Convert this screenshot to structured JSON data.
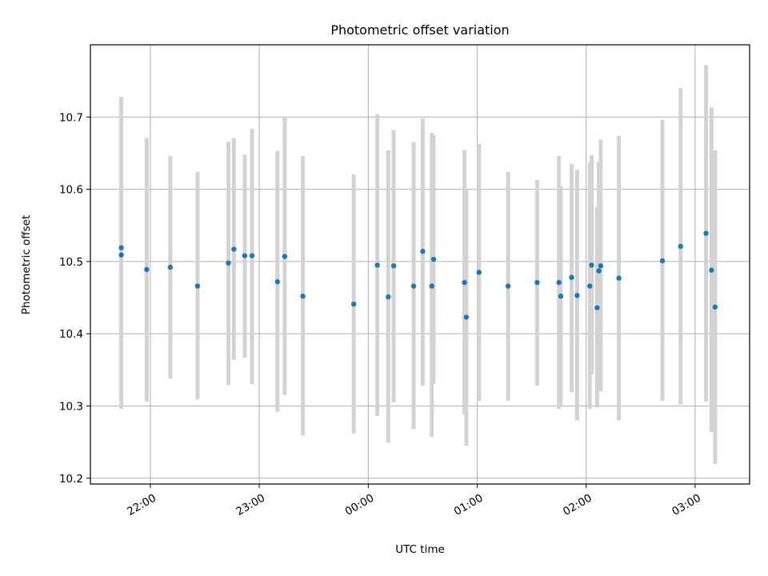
{
  "chart_data": {
    "type": "scatter",
    "title": "Photometric offset variation",
    "xlabel": "UTC time",
    "ylabel": "Photometric offset",
    "x_is_time": true,
    "xlim": [
      "21:27",
      "03:30"
    ],
    "ylim": [
      10.192,
      10.8
    ],
    "x_ticks": [
      "22:00",
      "23:00",
      "00:00",
      "01:00",
      "02:00",
      "03:00"
    ],
    "y_ticks": [
      "10.2",
      "10.3",
      "10.4",
      "10.5",
      "10.6",
      "10.7"
    ],
    "grid": true,
    "point_color": "#1f77b4",
    "errorbar_color": "#d3d3d3",
    "series": [
      {
        "points": [
          {
            "x": "21:44",
            "y": 10.509,
            "lo": 10.296,
            "hi": 10.724
          },
          {
            "x": "21:44",
            "y": 10.519,
            "lo": 10.311,
            "hi": 10.728
          },
          {
            "x": "21:58",
            "y": 10.489,
            "lo": 10.306,
            "hi": 10.671
          },
          {
            "x": "22:11",
            "y": 10.492,
            "lo": 10.338,
            "hi": 10.646
          },
          {
            "x": "22:26",
            "y": 10.466,
            "lo": 10.309,
            "hi": 10.624
          },
          {
            "x": "22:43",
            "y": 10.498,
            "lo": 10.329,
            "hi": 10.666
          },
          {
            "x": "22:46",
            "y": 10.517,
            "lo": 10.364,
            "hi": 10.671
          },
          {
            "x": "22:52",
            "y": 10.508,
            "lo": 10.367,
            "hi": 10.648
          },
          {
            "x": "22:56",
            "y": 10.508,
            "lo": 10.33,
            "hi": 10.684
          },
          {
            "x": "23:10",
            "y": 10.472,
            "lo": 10.292,
            "hi": 10.653
          },
          {
            "x": "23:14",
            "y": 10.507,
            "lo": 10.315,
            "hi": 10.7
          },
          {
            "x": "23:24",
            "y": 10.452,
            "lo": 10.259,
            "hi": 10.646
          },
          {
            "x": "23:52",
            "y": 10.441,
            "lo": 10.262,
            "hi": 10.621
          },
          {
            "x": "00:05",
            "y": 10.495,
            "lo": 10.286,
            "hi": 10.704
          },
          {
            "x": "00:11",
            "y": 10.451,
            "lo": 10.249,
            "hi": 10.654
          },
          {
            "x": "00:14",
            "y": 10.494,
            "lo": 10.305,
            "hi": 10.682
          },
          {
            "x": "00:25",
            "y": 10.466,
            "lo": 10.268,
            "hi": 10.665
          },
          {
            "x": "00:30",
            "y": 10.514,
            "lo": 10.328,
            "hi": 10.698
          },
          {
            "x": "00:35",
            "y": 10.466,
            "lo": 10.257,
            "hi": 10.678
          },
          {
            "x": "00:36",
            "y": 10.503,
            "lo": 10.331,
            "hi": 10.675
          },
          {
            "x": "00:53",
            "y": 10.471,
            "lo": 10.288,
            "hi": 10.654
          },
          {
            "x": "00:54",
            "y": 10.423,
            "lo": 10.245,
            "hi": 10.6
          },
          {
            "x": "01:01",
            "y": 10.485,
            "lo": 10.307,
            "hi": 10.663
          },
          {
            "x": "01:17",
            "y": 10.466,
            "lo": 10.307,
            "hi": 10.624
          },
          {
            "x": "01:33",
            "y": 10.471,
            "lo": 10.328,
            "hi": 10.613
          },
          {
            "x": "01:45",
            "y": 10.471,
            "lo": 10.296,
            "hi": 10.646
          },
          {
            "x": "01:46",
            "y": 10.452,
            "lo": 10.3,
            "hi": 10.604
          },
          {
            "x": "01:52",
            "y": 10.478,
            "lo": 10.319,
            "hi": 10.635
          },
          {
            "x": "01:55",
            "y": 10.453,
            "lo": 10.28,
            "hi": 10.627
          },
          {
            "x": "02:02",
            "y": 10.466,
            "lo": 10.296,
            "hi": 10.637
          },
          {
            "x": "02:03",
            "y": 10.495,
            "lo": 10.344,
            "hi": 10.647
          },
          {
            "x": "02:06",
            "y": 10.436,
            "lo": 10.298,
            "hi": 10.575
          },
          {
            "x": "02:07",
            "y": 10.487,
            "lo": 10.337,
            "hi": 10.638
          },
          {
            "x": "02:08",
            "y": 10.494,
            "lo": 10.32,
            "hi": 10.669
          },
          {
            "x": "02:18",
            "y": 10.477,
            "lo": 10.28,
            "hi": 10.674
          },
          {
            "x": "02:42",
            "y": 10.501,
            "lo": 10.307,
            "hi": 10.696
          },
          {
            "x": "02:52",
            "y": 10.521,
            "lo": 10.302,
            "hi": 10.74
          },
          {
            "x": "03:06",
            "y": 10.539,
            "lo": 10.306,
            "hi": 10.772
          },
          {
            "x": "03:09",
            "y": 10.488,
            "lo": 10.264,
            "hi": 10.713
          },
          {
            "x": "03:11",
            "y": 10.437,
            "lo": 10.22,
            "hi": 10.654
          }
        ]
      }
    ]
  }
}
